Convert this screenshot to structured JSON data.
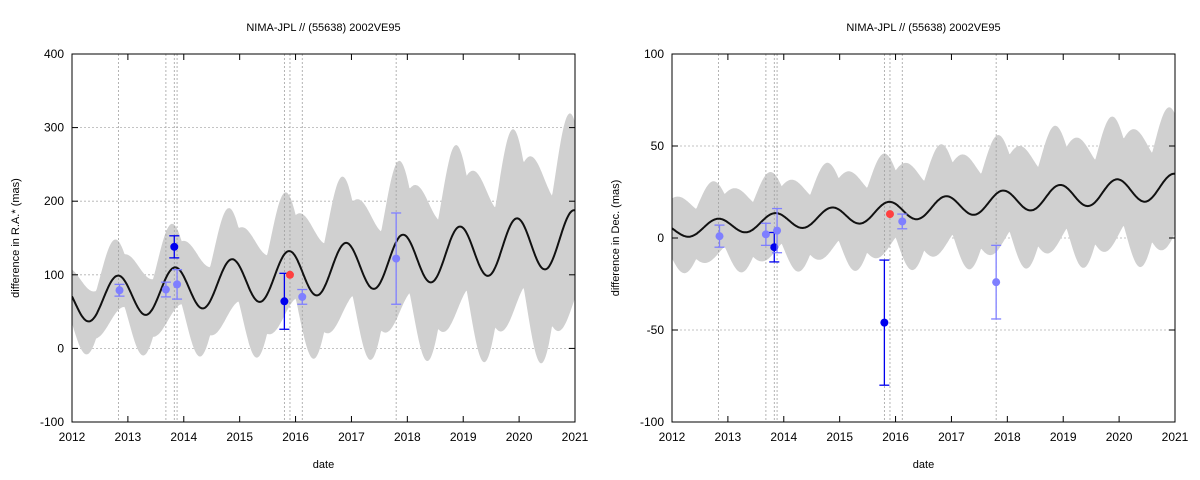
{
  "chart_data": [
    {
      "type": "line",
      "title": "NIMA-JPL // (55638) 2002VE95",
      "xlabel": "date",
      "ylabel": "difference in R.A.* (mas)",
      "xlim": [
        2012,
        2021
      ],
      "ylim": [
        -100,
        400
      ],
      "x_ticks": [
        "2012",
        "2013",
        "2014",
        "2015",
        "2016",
        "2017",
        "2018",
        "2019",
        "2020",
        "2021"
      ],
      "y_ticks": [
        "-100",
        "0",
        "100",
        "200",
        "300",
        "400"
      ],
      "y_tick_values": [
        -100,
        0,
        100,
        200,
        300,
        400
      ],
      "grid": true,
      "model": {
        "offset_start": 62,
        "offset_end": 150,
        "amplitude_start": 28,
        "amplitude_end": 38,
        "period_years": 1.02,
        "phase": 0.45,
        "band_half_width_start": 45,
        "band_half_width_end": 140
      },
      "observation_epochs": [
        2012.83,
        2013.68,
        2013.83,
        2013.88,
        2015.8,
        2015.9,
        2016.12,
        2017.8
      ],
      "points": [
        {
          "x": 2012.85,
          "y": 79,
          "err": 8,
          "color": "#7f7fff"
        },
        {
          "x": 2013.68,
          "y": 80,
          "err": 10,
          "color": "#7f7fff"
        },
        {
          "x": 2013.83,
          "y": 138,
          "err": 15,
          "color": "#0000ee"
        },
        {
          "x": 2013.88,
          "y": 87,
          "err": 20,
          "color": "#7f7fff"
        },
        {
          "x": 2015.8,
          "y": 64,
          "err": 38,
          "color": "#0000ee"
        },
        {
          "x": 2015.9,
          "y": 100,
          "err": 0,
          "color": "#ff4040"
        },
        {
          "x": 2016.12,
          "y": 70,
          "err": 10,
          "color": "#7f7fff"
        },
        {
          "x": 2017.8,
          "y": 122,
          "err": 62,
          "color": "#7f7fff"
        }
      ]
    },
    {
      "type": "line",
      "title": "NIMA-JPL // (55638) 2002VE95",
      "xlabel": "date",
      "ylabel": "difference in Dec. (mas)",
      "xlim": [
        2012,
        2021
      ],
      "ylim": [
        -100,
        100
      ],
      "x_ticks": [
        "2012",
        "2013",
        "2014",
        "2015",
        "2016",
        "2017",
        "2018",
        "2019",
        "2020",
        "2021"
      ],
      "y_ticks": [
        "-100",
        "-50",
        "0",
        "50",
        "100"
      ],
      "y_tick_values": [
        -100,
        -50,
        0,
        50,
        100
      ],
      "grid": true,
      "model": {
        "offset_start": 4,
        "offset_end": 28,
        "amplitude_start": 4,
        "amplitude_end": 7,
        "period_years": 1.02,
        "phase": 0.45,
        "band_half_width_start": 20,
        "band_half_width_end": 38
      },
      "observation_epochs": [
        2012.83,
        2013.68,
        2013.83,
        2013.88,
        2015.8,
        2015.9,
        2016.12,
        2017.8
      ],
      "points": [
        {
          "x": 2012.85,
          "y": 1,
          "err": 6,
          "color": "#7f7fff"
        },
        {
          "x": 2013.68,
          "y": 2,
          "err": 6,
          "color": "#7f7fff"
        },
        {
          "x": 2013.83,
          "y": -5,
          "err": 8,
          "color": "#0000ee"
        },
        {
          "x": 2013.88,
          "y": 4,
          "err": 12,
          "color": "#7f7fff"
        },
        {
          "x": 2015.8,
          "y": -46,
          "err": 34,
          "color": "#0000ee"
        },
        {
          "x": 2015.9,
          "y": 13,
          "err": 0,
          "color": "#ff4040"
        },
        {
          "x": 2016.12,
          "y": 9,
          "err": 4,
          "color": "#7f7fff"
        },
        {
          "x": 2017.8,
          "y": -24,
          "err": 20,
          "color": "#7f7fff"
        }
      ]
    }
  ],
  "colors": {
    "band": "#d0d0d0",
    "curve": "#111111",
    "grid": "#b0b0b0",
    "epoch_line": "#a0a0a0"
  }
}
